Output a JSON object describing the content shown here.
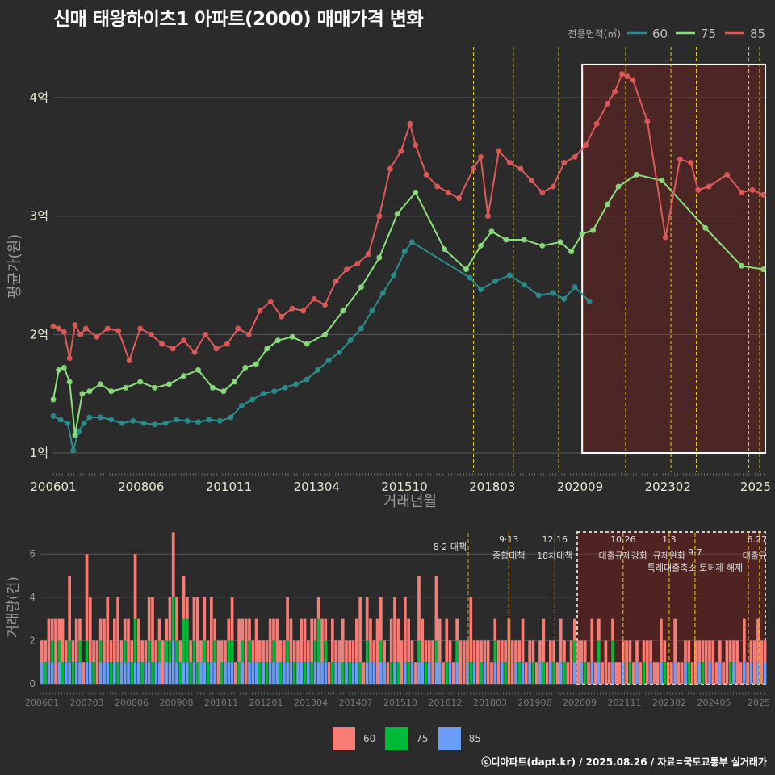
{
  "title": "신매 태왕하이츠1 아파트(2000) 매매가격 변화",
  "footer": "ⓒ디아파트(dapt.kr) / 2025.08.26 / 자료=국토교통부 실거래가",
  "colors": {
    "s60": "#2a8e8e",
    "s75": "#8be07c",
    "s85": "#e05a5a",
    "b60": "#f87c75",
    "b75": "#00ba38",
    "b85": "#6a9df7",
    "vline": "#e6d200",
    "vline2": "#f0a000"
  },
  "chart_data": [
    {
      "type": "line",
      "title": "신매 태왕하이츠1 아파트(2000) 매매가격 변화",
      "xlabel": "거래년월",
      "ylabel": "평균가(원)",
      "legend_title": "전용면적(㎡)",
      "x_tick_labels": [
        "200601",
        "200806",
        "201011",
        "201304",
        "201510",
        "201803",
        "202009",
        "202302",
        "2025"
      ],
      "y_tick_labels": [
        "1억",
        "2억",
        "3억",
        "4억"
      ],
      "ylim": [
        0.85,
        4.35
      ],
      "x_range": [
        2006.0,
        2025.7
      ],
      "events": [
        2017.6,
        2018.7,
        2019.95,
        2021.8,
        2023.05,
        2023.75,
        2025.2,
        2025.5
      ],
      "highlight": {
        "x": [
          2020.6,
          2025.7
        ],
        "y": [
          1.0,
          4.28
        ]
      },
      "series": [
        {
          "name": "60",
          "x": [
            2006.0,
            2006.2,
            2006.4,
            2006.55,
            2006.7,
            2006.85,
            2007.0,
            2007.3,
            2007.6,
            2007.9,
            2008.2,
            2008.5,
            2008.8,
            2009.1,
            2009.4,
            2009.7,
            2010.0,
            2010.3,
            2010.6,
            2010.9,
            2011.2,
            2011.5,
            2011.8,
            2012.1,
            2012.4,
            2012.7,
            2013.0,
            2013.3,
            2013.6,
            2013.9,
            2014.2,
            2014.5,
            2014.8,
            2015.1,
            2015.4,
            2015.7,
            2015.9,
            2017.5,
            2017.8,
            2018.2,
            2018.6,
            2019.0,
            2019.4,
            2019.8,
            2020.1,
            2020.4,
            2020.8
          ],
          "values": [
            1.31,
            1.28,
            1.25,
            1.02,
            1.18,
            1.25,
            1.3,
            1.3,
            1.28,
            1.25,
            1.27,
            1.25,
            1.24,
            1.25,
            1.28,
            1.27,
            1.26,
            1.28,
            1.27,
            1.3,
            1.4,
            1.45,
            1.5,
            1.52,
            1.55,
            1.58,
            1.62,
            1.7,
            1.78,
            1.85,
            1.95,
            2.05,
            2.2,
            2.35,
            2.5,
            2.7,
            2.78,
            2.48,
            2.38,
            2.45,
            2.5,
            2.42,
            2.33,
            2.35,
            2.3,
            2.4,
            2.28
          ]
        },
        {
          "name": "75",
          "x": [
            2006.0,
            2006.15,
            2006.3,
            2006.45,
            2006.6,
            2006.8,
            2007.0,
            2007.3,
            2007.6,
            2008.0,
            2008.4,
            2008.8,
            2009.2,
            2009.6,
            2010.0,
            2010.4,
            2010.7,
            2011.0,
            2011.3,
            2011.6,
            2011.9,
            2012.2,
            2012.6,
            2013.0,
            2013.5,
            2014.0,
            2014.5,
            2015.0,
            2015.5,
            2016.0,
            2016.8,
            2017.4,
            2017.8,
            2018.1,
            2018.5,
            2019.0,
            2019.5,
            2020.0,
            2020.3,
            2020.6,
            2020.9,
            2021.3,
            2021.6,
            2022.1,
            2022.8,
            2024.0,
            2025.0,
            2025.6
          ],
          "values": [
            1.45,
            1.7,
            1.72,
            1.6,
            1.15,
            1.5,
            1.52,
            1.58,
            1.52,
            1.55,
            1.6,
            1.55,
            1.58,
            1.65,
            1.7,
            1.55,
            1.52,
            1.6,
            1.72,
            1.75,
            1.88,
            1.95,
            1.98,
            1.92,
            2.0,
            2.2,
            2.4,
            2.65,
            3.02,
            3.2,
            2.72,
            2.55,
            2.75,
            2.87,
            2.8,
            2.8,
            2.75,
            2.78,
            2.7,
            2.85,
            2.88,
            3.1,
            3.25,
            3.35,
            3.3,
            2.9,
            2.58,
            2.55
          ]
        },
        {
          "name": "85",
          "x": [
            2006.0,
            2006.15,
            2006.3,
            2006.45,
            2006.6,
            2006.75,
            2006.9,
            2007.2,
            2007.5,
            2007.8,
            2008.1,
            2008.4,
            2008.7,
            2009.0,
            2009.3,
            2009.6,
            2009.9,
            2010.2,
            2010.5,
            2010.8,
            2011.1,
            2011.4,
            2011.7,
            2012.0,
            2012.3,
            2012.6,
            2012.9,
            2013.2,
            2013.5,
            2013.8,
            2014.1,
            2014.4,
            2014.7,
            2015.0,
            2015.3,
            2015.6,
            2015.85,
            2016.0,
            2016.3,
            2016.6,
            2016.9,
            2017.2,
            2017.6,
            2017.8,
            2018.0,
            2018.3,
            2018.6,
            2018.9,
            2019.2,
            2019.5,
            2019.8,
            2020.1,
            2020.4,
            2020.7,
            2021.0,
            2021.3,
            2021.5,
            2021.7,
            2021.85,
            2022.0,
            2022.4,
            2022.9,
            2023.3,
            2023.6,
            2023.8,
            2024.1,
            2024.6,
            2025.0,
            2025.3,
            2025.6
          ],
          "values": [
            2.07,
            2.05,
            2.02,
            1.8,
            2.08,
            2.0,
            2.05,
            1.98,
            2.05,
            2.03,
            1.78,
            2.05,
            2.0,
            1.92,
            1.88,
            1.95,
            1.85,
            2.0,
            1.88,
            1.92,
            2.05,
            2.0,
            2.2,
            2.28,
            2.15,
            2.22,
            2.2,
            2.3,
            2.25,
            2.45,
            2.55,
            2.6,
            2.68,
            3.0,
            3.4,
            3.55,
            3.78,
            3.6,
            3.35,
            3.25,
            3.2,
            3.15,
            3.4,
            3.5,
            3.0,
            3.55,
            3.45,
            3.4,
            3.3,
            3.2,
            3.25,
            3.45,
            3.5,
            3.6,
            3.78,
            3.95,
            4.05,
            4.2,
            4.18,
            4.15,
            3.8,
            2.82,
            3.48,
            3.45,
            3.22,
            3.25,
            3.35,
            3.2,
            3.22,
            3.18
          ]
        }
      ]
    },
    {
      "type": "bar",
      "stacked": true,
      "xlabel": "",
      "ylabel": "거래량(건)",
      "x_tick_labels": [
        "200601",
        "200703",
        "200806",
        "200908",
        "201011",
        "201201",
        "201304",
        "201407",
        "201510",
        "201612",
        "201803",
        "201906",
        "202009",
        "202111",
        "202302",
        "202405",
        "2025"
      ],
      "y_tick_labels": [
        "0",
        "2",
        "4",
        "6"
      ],
      "ylim": [
        0,
        7.3
      ],
      "x_range": [
        2006.0,
        2025.7
      ],
      "events": [
        2017.6,
        2018.7,
        2019.95,
        2021.8,
        2023.05,
        2023.75,
        2025.2,
        2025.5
      ],
      "annotations": [
        {
          "label": "8·2 대책",
          "x": 2017.6
        },
        {
          "label": "9·13",
          "x": 2018.7
        },
        {
          "label": "종합대책",
          "x": 2018.7
        },
        {
          "label": "12·16",
          "x": 2019.95
        },
        {
          "label": "18차대책",
          "x": 2019.95
        },
        {
          "label": "10.26",
          "x": 2021.8
        },
        {
          "label": "대출규제강화",
          "x": 2021.8
        },
        {
          "label": "1.3",
          "x": 2023.05
        },
        {
          "label": "규제완화",
          "x": 2023.05
        },
        {
          "label": "9·7",
          "x": 2023.75
        },
        {
          "label": "특례대출축소 토허제 해제",
          "x": 2023.75
        },
        {
          "label": "6.27",
          "x": 2025.2
        },
        {
          "label": "대출규",
          "x": 2025.2
        }
      ],
      "legend": [
        "60",
        "75",
        "85"
      ],
      "series": [
        {
          "name": "60",
          "values": [
            1,
            1,
            2,
            1,
            3,
            1,
            2,
            1,
            3,
            1,
            2,
            1,
            1,
            4,
            3,
            1,
            2,
            1,
            2,
            3,
            1,
            2,
            3,
            1,
            1,
            2,
            1,
            3,
            2,
            1,
            1,
            2,
            3,
            1,
            1,
            2,
            1,
            2,
            3,
            2,
            1,
            2,
            1,
            1,
            2,
            3,
            1,
            2,
            1,
            3,
            1,
            2,
            1,
            1,
            1,
            2,
            1,
            2,
            1,
            3,
            1,
            1,
            2,
            1,
            1,
            1,
            2,
            1,
            2,
            1,
            1,
            2,
            2,
            1,
            1,
            2,
            2,
            1,
            2,
            1,
            1,
            2,
            1,
            1,
            2,
            1,
            1,
            2,
            1,
            1,
            1,
            2,
            3,
            1,
            2,
            2,
            1,
            3,
            2,
            1,
            1,
            2,
            3,
            2,
            2,
            3,
            2,
            1,
            1,
            3,
            2,
            1,
            1,
            2,
            3,
            2,
            1,
            2,
            1,
            1,
            1,
            2,
            2,
            1,
            3,
            1,
            2,
            1,
            1,
            2,
            1,
            1,
            2,
            1,
            1,
            3,
            2,
            1,
            1,
            2,
            1,
            1,
            1,
            1,
            1,
            2,
            1,
            1,
            1,
            1,
            2,
            1,
            1,
            2,
            1,
            2,
            1,
            1,
            1,
            2,
            1,
            1,
            1,
            2,
            1,
            1,
            1,
            1,
            1,
            2,
            1,
            1,
            1,
            1,
            1,
            2,
            1,
            1,
            1,
            2,
            1,
            1,
            1,
            2,
            1,
            1,
            1,
            1,
            1,
            2,
            1,
            1,
            2,
            1,
            2,
            1,
            1,
            1,
            2,
            1,
            1,
            2,
            1,
            2,
            1,
            1,
            2,
            2,
            2,
            1
          ]
        },
        {
          "name": "75",
          "values": [
            0,
            1,
            0,
            1,
            0,
            1,
            1,
            0,
            1,
            1,
            0,
            1,
            0,
            1,
            0,
            1,
            0,
            1,
            0,
            0,
            1,
            0,
            1,
            0,
            1,
            0,
            1,
            2,
            0,
            1,
            0,
            1,
            1,
            0,
            1,
            0,
            1,
            1,
            2,
            1,
            1,
            2,
            2,
            1,
            1,
            1,
            0,
            1,
            1,
            0,
            1,
            0,
            1,
            0,
            1,
            1,
            0,
            1,
            1,
            0,
            1,
            0,
            0,
            1,
            0,
            1,
            0,
            1,
            0,
            1,
            0,
            1,
            0,
            1,
            0,
            0,
            1,
            0,
            1,
            1,
            2,
            0,
            1,
            0,
            1,
            0,
            0,
            1,
            0,
            1,
            0,
            0,
            1,
            0,
            1,
            0,
            0,
            0,
            1,
            0,
            0,
            1,
            0,
            1,
            0,
            0,
            1,
            0,
            0,
            1,
            0,
            1,
            0,
            0,
            1,
            0,
            0,
            1,
            0,
            0,
            1,
            0,
            0,
            0,
            1,
            0,
            0,
            1,
            0,
            0,
            0,
            1,
            0,
            0,
            1,
            0,
            0,
            0,
            1,
            0,
            0,
            0,
            1,
            0,
            0,
            1,
            0,
            0,
            1,
            0,
            0,
            1,
            0,
            0,
            1,
            0,
            0,
            1,
            0,
            0,
            0,
            1,
            0,
            0,
            0,
            1,
            0,
            0,
            0,
            0,
            1,
            0,
            0,
            0,
            1,
            0,
            0,
            0,
            0,
            0,
            1,
            0,
            0,
            0,
            0,
            0,
            0,
            1,
            0,
            0,
            0,
            1,
            0,
            0,
            0,
            0,
            0,
            0,
            0,
            1,
            0,
            0,
            0,
            0,
            0,
            0,
            0,
            0,
            0
          ]
        },
        {
          "name": "85",
          "values": [
            1,
            0,
            1,
            1,
            0,
            1,
            0,
            1,
            1,
            0,
            1,
            1,
            0,
            1,
            1,
            0,
            0,
            1,
            1,
            1,
            0,
            1,
            0,
            1,
            1,
            1,
            0,
            1,
            1,
            0,
            1,
            1,
            0,
            1,
            1,
            0,
            1,
            1,
            2,
            1,
            0,
            1,
            1,
            0,
            1,
            0,
            1,
            1,
            0,
            1,
            1,
            0,
            0,
            1,
            1,
            1,
            0,
            0,
            1,
            0,
            1,
            1,
            1,
            0,
            1,
            0,
            1,
            1,
            1,
            0,
            1,
            1,
            1,
            0,
            1,
            1,
            0,
            1,
            0,
            1,
            1,
            1,
            1,
            0,
            0,
            1,
            1,
            0,
            1,
            0,
            1,
            1,
            0,
            0,
            1,
            1,
            1,
            0,
            1,
            1,
            0,
            0,
            1,
            0,
            0,
            1,
            0,
            1,
            0,
            1,
            1,
            0,
            1,
            0,
            1,
            1,
            0,
            0,
            1,
            0,
            1,
            0,
            0,
            1,
            0,
            1,
            0,
            0,
            1,
            0,
            0,
            1,
            0,
            1,
            0,
            0,
            0,
            1,
            0,
            1,
            0,
            1,
            0,
            0,
            1,
            0,
            0,
            1,
            0,
            0,
            1,
            0,
            0,
            0,
            1,
            0,
            1,
            0,
            0,
            1,
            0,
            1,
            0,
            0,
            0,
            1,
            0,
            0,
            1,
            0,
            0,
            0,
            1,
            0,
            0,
            0,
            1,
            0,
            0,
            1,
            0,
            0,
            0,
            1,
            0,
            0,
            1,
            0,
            0,
            0,
            1,
            0,
            0,
            1,
            0,
            0,
            1,
            0,
            0,
            0,
            1,
            0,
            0,
            1,
            0,
            1,
            0,
            1,
            0,
            1,
            0
          ]
        }
      ]
    }
  ]
}
